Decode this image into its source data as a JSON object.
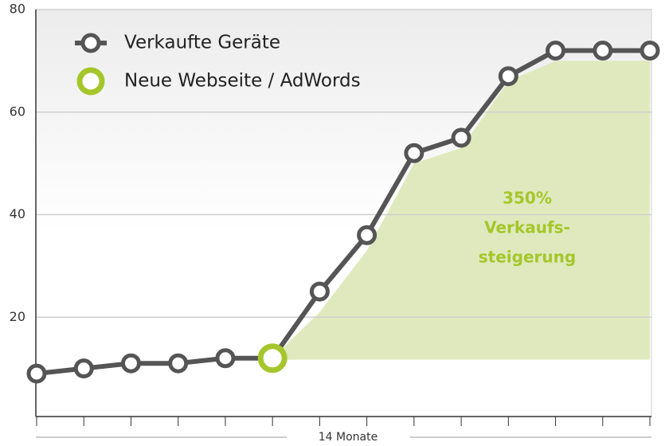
{
  "chart_data": {
    "type": "line",
    "categories": [
      null,
      null,
      null,
      null,
      null,
      null,
      null,
      null,
      null,
      null,
      null,
      null,
      null,
      null
    ],
    "series": [
      {
        "name": "Verkaufte Geräte",
        "color": "#555555",
        "values": [
          9,
          10,
          11,
          11,
          12,
          12,
          25,
          36,
          52,
          55,
          67,
          72,
          72,
          72
        ]
      },
      {
        "name": "Neue Webseite / AdWords",
        "color": "#a5c62b",
        "values": [
          null,
          null,
          null,
          null,
          null,
          12,
          null,
          null,
          null,
          null,
          null,
          null,
          null,
          null
        ]
      }
    ],
    "band": {
      "color": "#dfe9bd",
      "low": 11.7,
      "high": [
        null,
        null,
        null,
        null,
        null,
        12,
        21,
        33,
        50,
        53,
        66,
        70,
        70,
        70
      ]
    },
    "annotation": [
      "350%",
      "Verkaufs-",
      "steigerung"
    ],
    "annotation_color": "#a5c62b",
    "xlabel": "14 Monate",
    "ylim": [
      0,
      80
    ],
    "yticks": [
      20,
      40,
      60,
      80
    ],
    "grid": true,
    "legend": "top-left"
  }
}
